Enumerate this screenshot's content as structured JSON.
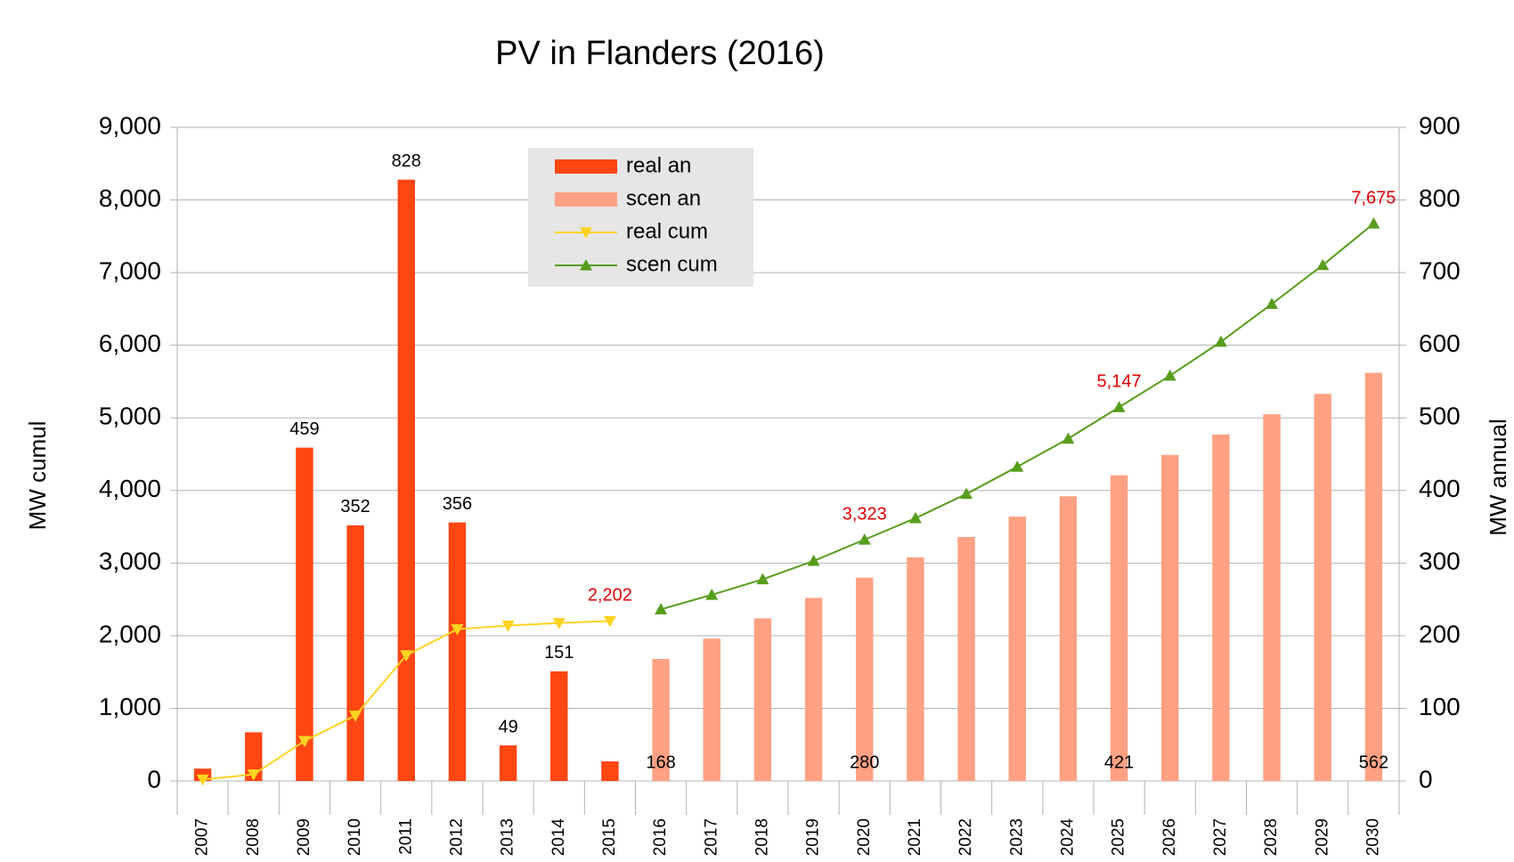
{
  "chart_data": {
    "type": "bar-line",
    "title": "PV in Flanders (2016)",
    "y_label": "MW cumul",
    "y2_label": "MW annual",
    "categories": [
      "2007",
      "2008",
      "2009",
      "2010",
      "2011",
      "2012",
      "2013",
      "2014",
      "2015",
      "2016",
      "2017",
      "2018",
      "2019",
      "2020",
      "2021",
      "2022",
      "2023",
      "2024",
      "2025",
      "2026",
      "2027",
      "2028",
      "2029",
      "2030"
    ],
    "series": [
      {
        "name": "real an",
        "kind": "bar",
        "axis": "y2",
        "color": "#ff4613",
        "values": [
          17,
          67,
          459,
          352,
          828,
          356,
          49,
          151,
          27,
          null,
          null,
          null,
          null,
          null,
          null,
          null,
          null,
          null,
          null,
          null,
          null,
          null,
          null,
          null
        ],
        "value_labels": [
          null,
          null,
          "459",
          "352",
          "828",
          "356",
          "49",
          "151",
          null,
          null,
          null,
          null,
          null,
          null,
          null,
          null,
          null,
          null,
          null,
          null,
          null,
          null,
          null,
          null
        ]
      },
      {
        "name": "scen an",
        "kind": "bar",
        "axis": "y2",
        "color": "#ffa182",
        "values": [
          null,
          null,
          null,
          null,
          null,
          null,
          null,
          null,
          null,
          168,
          196,
          224,
          252,
          280,
          308,
          336,
          364,
          392,
          421,
          449,
          477,
          505,
          533,
          562
        ],
        "value_labels": [
          null,
          null,
          null,
          null,
          null,
          null,
          null,
          null,
          null,
          "168",
          null,
          null,
          null,
          "280",
          null,
          null,
          null,
          null,
          "421",
          null,
          null,
          null,
          null,
          "562"
        ]
      },
      {
        "name": "real cum",
        "kind": "line",
        "marker": "triangle-down",
        "color": "#ffd320",
        "values": [
          20,
          90,
          550,
          900,
          1730,
          2090,
          2140,
          2175,
          2202,
          null,
          null,
          null,
          null,
          null,
          null,
          null,
          null,
          null,
          null,
          null,
          null,
          null,
          null,
          null
        ],
        "value_labels": [
          null,
          null,
          null,
          null,
          null,
          null,
          null,
          null,
          "2,202",
          null,
          null,
          null,
          null,
          null,
          null,
          null,
          null,
          null,
          null,
          null,
          null,
          null,
          null,
          null
        ]
      },
      {
        "name": "scen cum",
        "kind": "line",
        "marker": "triangle-up",
        "color": "#579d1c",
        "values": [
          null,
          null,
          null,
          null,
          null,
          null,
          null,
          null,
          null,
          2363,
          2563,
          2777,
          3030,
          3323,
          3618,
          3952,
          4326,
          4713,
          5147,
          5581,
          6048,
          6569,
          7103,
          7675
        ],
        "value_labels": [
          null,
          null,
          null,
          null,
          null,
          null,
          null,
          null,
          null,
          null,
          null,
          null,
          null,
          "3,323",
          null,
          null,
          null,
          null,
          "5,147",
          null,
          null,
          null,
          null,
          "7,675"
        ]
      }
    ],
    "value_label_color": "#e00000",
    "ylim": [
      0,
      9000
    ],
    "yticks": [
      0,
      {
        "value": 1000,
        "label": "1,000"
      },
      {
        "value": 2000,
        "label": "2,000"
      },
      {
        "value": 3000,
        "label": "3,000"
      },
      {
        "value": 4000,
        "label": "4,000"
      },
      {
        "value": 5000,
        "label": "5,000"
      },
      {
        "value": 6000,
        "label": "6,000"
      },
      {
        "value": 7000,
        "label": "7,000"
      },
      {
        "value": 8000,
        "label": "8,000"
      },
      {
        "value": 9000,
        "label": "9,000"
      }
    ],
    "y2lim": [
      0,
      900
    ],
    "y2ticks": [
      0,
      100,
      200,
      300,
      400,
      500,
      600,
      700,
      800,
      900
    ],
    "grid": true,
    "legend": "top-center"
  }
}
